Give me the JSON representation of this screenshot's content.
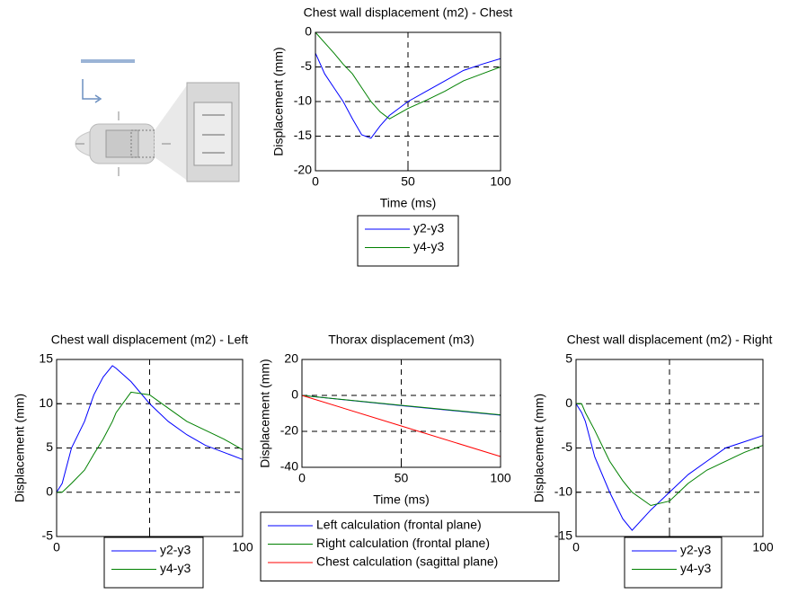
{
  "chart_data": [
    {
      "type": "line",
      "title": "Chest wall displacement (m2) - Chest",
      "x_label": "Time (ms)",
      "y_label": "Displacement (mm)",
      "x": [
        0,
        5,
        10,
        15,
        20,
        25,
        30,
        35,
        40,
        50,
        60,
        70,
        80,
        90,
        100
      ],
      "series": [
        {
          "name": "y2-y3",
          "color": "#0000ff",
          "values": [
            -3,
            -6,
            -8,
            -10,
            -12.5,
            -14.8,
            -15.3,
            -13.5,
            -12,
            -10,
            -8.5,
            -7,
            -5.5,
            -4.6,
            -3.8
          ]
        },
        {
          "name": "y4-y3",
          "color": "#008000",
          "values": [
            0,
            -1.5,
            -3,
            -4.6,
            -6,
            -8,
            -10,
            -11.5,
            -12.5,
            -11,
            -9.8,
            -8.5,
            -7,
            -6,
            -5
          ]
        }
      ],
      "xlim": [
        0,
        100
      ],
      "xticks": [
        0,
        50,
        100
      ],
      "ylim": [
        -20,
        0
      ],
      "yticks": [
        -20,
        -15,
        -10,
        -5,
        0
      ],
      "grid": true
    },
    {
      "type": "line",
      "title": "Chest wall displacement (m2) - Left",
      "x_label": "Time (ms)",
      "y_label": "Displacement (mm)",
      "x": [
        0,
        3,
        8,
        15,
        20,
        25,
        30,
        32,
        40,
        50,
        60,
        70,
        80,
        90,
        100
      ],
      "series": [
        {
          "name": "y2-y3",
          "color": "#0000ff",
          "values": [
            0,
            1,
            5,
            8,
            11,
            13,
            14.3,
            14,
            12.5,
            10,
            8,
            6.5,
            5.3,
            4.5,
            3.7
          ]
        },
        {
          "name": "y4-y3",
          "color": "#008000",
          "values": [
            0,
            0,
            1,
            2.5,
            4.3,
            6,
            8,
            9,
            11.3,
            11,
            9.5,
            8,
            7,
            6,
            4.8
          ]
        }
      ],
      "xlim": [
        0,
        100
      ],
      "xticks": [
        0,
        50,
        100
      ],
      "ylim": [
        -5,
        15
      ],
      "yticks": [
        -5,
        0,
        5,
        10,
        15
      ],
      "grid": true
    },
    {
      "type": "line",
      "title": "Thorax displacement (m3)",
      "x_label": "Time (ms)",
      "y_label": "Displacement (mm)",
      "x": [
        0,
        50,
        100
      ],
      "series": [
        {
          "name": "Left calculation (frontal plane)",
          "color": "#0000ff",
          "values": [
            0,
            -5.7,
            -11
          ]
        },
        {
          "name": "Right calculation (frontal plane)",
          "color": "#008000",
          "values": [
            0,
            -5.5,
            -10.8
          ]
        },
        {
          "name": "Chest calculation (sagittal plane)",
          "color": "#ff0000",
          "values": [
            0,
            -17,
            -34
          ]
        }
      ],
      "xlim": [
        0,
        100
      ],
      "xticks": [
        0,
        50,
        100
      ],
      "ylim": [
        -40,
        20
      ],
      "yticks": [
        -40,
        -20,
        0,
        20
      ],
      "grid": true
    },
    {
      "type": "line",
      "title": "Chest wall displacement (m2) - Right",
      "x_label": "Time (ms)",
      "y_label": "Displacement (mm)",
      "x": [
        0,
        3,
        5,
        10,
        18,
        25,
        30,
        40,
        50,
        60,
        70,
        80,
        90,
        100
      ],
      "series": [
        {
          "name": "y2-y3",
          "color": "#0000ff",
          "values": [
            0,
            -1,
            -2,
            -6,
            -10,
            -13,
            -14.3,
            -12,
            -10,
            -8,
            -6.5,
            -5,
            -4.3,
            -3.6
          ]
        },
        {
          "name": "y4-y3",
          "color": "#008000",
          "values": [
            0,
            0,
            -1,
            -3,
            -6.5,
            -8.7,
            -10,
            -11.5,
            -11,
            -9,
            -7.5,
            -6.5,
            -5.5,
            -4.7
          ]
        }
      ],
      "xlim": [
        0,
        100
      ],
      "xticks": [
        0,
        50,
        100
      ],
      "ylim": [
        -15,
        5
      ],
      "yticks": [
        -15,
        -10,
        -5,
        0,
        5
      ],
      "grid": true
    }
  ]
}
